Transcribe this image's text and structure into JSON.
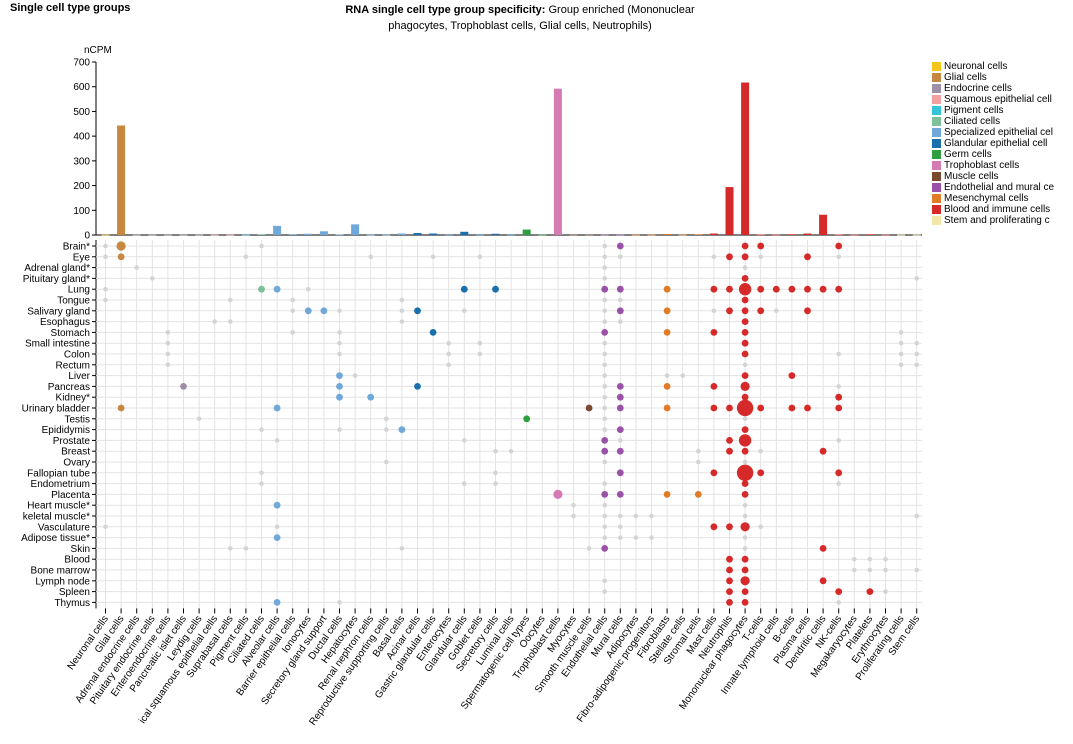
{
  "header": {
    "left_title": "Single cell type groups",
    "title_bold": "RNA single cell type group specificity:",
    "title_rest": " Group enriched (Mononuclear phagocytes, Trophoblast cells, Glial cells, Neutrophils)"
  },
  "legend": [
    {
      "label": "Neuronal cells",
      "color": "#f5c518"
    },
    {
      "label": "Glial cells",
      "color": "#c6873e"
    },
    {
      "label": "Endocrine cells",
      "color": "#9e8fa6"
    },
    {
      "label": "Squamous epithelial cell",
      "color": "#f2a0a0"
    },
    {
      "label": "Pigment cells",
      "color": "#35c4d6"
    },
    {
      "label": "Ciliated cells",
      "color": "#7fbf99"
    },
    {
      "label": "Specialized epithelial cel",
      "color": "#6fa8d9"
    },
    {
      "label": "Glandular epithelial cell",
      "color": "#1a6fad"
    },
    {
      "label": "Germ cells",
      "color": "#2f9e3e"
    },
    {
      "label": "Trophoblast cells",
      "color": "#d67ab4"
    },
    {
      "label": "Muscle cells",
      "color": "#7a4a2e"
    },
    {
      "label": "Endothelial and mural ce",
      "color": "#9a52a8"
    },
    {
      "label": "Mesenchymal cells",
      "color": "#e07b26"
    },
    {
      "label": "Blood and immune cells",
      "color": "#d62a2a"
    },
    {
      "label": "Stem and proliferating c",
      "color": "#f2e6a8"
    }
  ],
  "chart_data": {
    "type": "bar",
    "ylabel": "nCPM",
    "ylim": [
      0,
      700
    ],
    "yticks": [
      0,
      100,
      200,
      300,
      400,
      500,
      600,
      700
    ],
    "grid": true,
    "categories": [
      "Neuronal cells",
      "Glial cells",
      "Adrenal endocrine cells",
      "Pituitary endocrine cells",
      "Enteroendocrine cells",
      "Pancreatic islet cells",
      "Leydig cells",
      "Basal squamous epithelial cells",
      "Suprabasal cells",
      "Pigment cells",
      "Ciliated cells",
      "Alveolar cells",
      "Barrier epithelial cells",
      "Ionocytes",
      "Secretory gland support",
      "Ductal cells",
      "Hepatocytes",
      "Renal nephron cells",
      "Reproductive supporting cells",
      "Basal cells",
      "Acinar cells",
      "Gastric glandular cells",
      "Enterocytes",
      "Glandular cells",
      "Goblet cells",
      "Secretory cells",
      "Luminal cells",
      "Spermatogenic cell types",
      "Oocytes",
      "Trophoblast cells",
      "Myocytes",
      "Smooth muscle cells",
      "Endothelial cells",
      "Mural cells",
      "Adipocytes",
      "Fibro-adipogenic progenitors",
      "Fibroblasts",
      "Stellate cells",
      "Stromal cells",
      "Mast cells",
      "Neutrophils",
      "Mononuclear phagocytes",
      "T-cells",
      "Innate lymphoid cells",
      "B-cells",
      "Plasma cells",
      "Dendritic cells",
      "NK-cells",
      "Megakaryocytes",
      "Platelets",
      "Erythrocytes",
      "Proliferating cells",
      "Stem cells"
    ],
    "categories_display": [
      "Neuronal cells",
      "Glial cells",
      "Adrenal endocrine cells",
      "Pituitary endocrine cells",
      "Enteroendocrine cells",
      "Pancreatic islet cells",
      "Leydig cells",
      "ical squamous epithelial cells",
      "Suprabasal cells",
      "Pigment cells",
      "Ciliated cells",
      "Alveolar cells",
      "Barrier epithelial cells",
      "Ionocytes",
      "Secretory gland support",
      "Ductal cells",
      "Hepatocytes",
      "Renal nephron cells",
      "Reproductive supporting cells",
      "Basal cells",
      "Acinar cells",
      "Gastric glandular cells",
      "Enterocytes",
      "Glandular cells",
      "Goblet cells",
      "Secretory cells",
      "Luminal cells",
      "Spermatogenic cell types",
      "Oocytes",
      "Trophoblast cells",
      "Myocytes",
      "Smooth muscle cells",
      "Endothelial cells",
      "Mural cells",
      "Adipocytes",
      "Fibro-adipogenic progenitors",
      "Fibroblasts",
      "Stellate cells",
      "Stromal cells",
      "Mast cells",
      "Neutrophils",
      "Mononuclear phagocytes",
      "T-cells",
      "Innate lymphoid cells",
      "B-cells",
      "Plasma cells",
      "Dendritic cells",
      "NK-cells",
      "Megakaryocytes",
      "Platelets",
      "Erythrocytes",
      "Proliferating cells",
      "Stem cells"
    ],
    "values": [
      1,
      443,
      1,
      1,
      1,
      1,
      1,
      1,
      1,
      1,
      3,
      37,
      3,
      5,
      15,
      2,
      43,
      1,
      1,
      6,
      8,
      6,
      1,
      13,
      1,
      5,
      1,
      22,
      1,
      592,
      1,
      1,
      1,
      1,
      1,
      1,
      4,
      1,
      3,
      6,
      194,
      617,
      2,
      1,
      3,
      6,
      82,
      2,
      1,
      3,
      1,
      1,
      1
    ],
    "bar_colors": [
      "#f5c518",
      "#c6873e",
      "#9e8fa6",
      "#9e8fa6",
      "#9e8fa6",
      "#9e8fa6",
      "#9e8fa6",
      "#f2a0a0",
      "#f2a0a0",
      "#35c4d6",
      "#7fbf99",
      "#6fa8d9",
      "#6fa8d9",
      "#6fa8d9",
      "#6fa8d9",
      "#6fa8d9",
      "#6fa8d9",
      "#6fa8d9",
      "#6fa8d9",
      "#6fa8d9",
      "#1a6fad",
      "#1a6fad",
      "#1a6fad",
      "#1a6fad",
      "#1a6fad",
      "#1a6fad",
      "#1a6fad",
      "#2f9e3e",
      "#2f9e3e",
      "#d67ab4",
      "#7a4a2e",
      "#7a4a2e",
      "#9a52a8",
      "#9a52a8",
      "#e07b26",
      "#e07b26",
      "#e07b26",
      "#e07b26",
      "#e07b26",
      "#d62a2a",
      "#d62a2a",
      "#d62a2a",
      "#d62a2a",
      "#d62a2a",
      "#d62a2a",
      "#d62a2a",
      "#d62a2a",
      "#d62a2a",
      "#d62a2a",
      "#d62a2a",
      "#d62a2a",
      "#f2e6a8",
      "#f2e6a8"
    ],
    "tissues": [
      "Brain*",
      "Eye",
      "Adrenal gland*",
      "Pituitary gland*",
      "Lung",
      "Tongue",
      "Salivary gland",
      "Esophagus",
      "Stomach",
      "Small intestine",
      "Colon",
      "Rectum",
      "Liver",
      "Pancreas",
      "Kidney*",
      "Urinary bladder",
      "Testis",
      "Epididymis",
      "Prostate",
      "Breast",
      "Ovary",
      "Fallopian tube",
      "Endometrium",
      "Placenta",
      "Heart muscle*",
      "Skeletal muscle*",
      "Vasculature",
      "Adipose tissue*",
      "Skin",
      "Blood",
      "Bone marrow",
      "Lymph node",
      "Spleen",
      "Thymus"
    ],
    "tissues_display": [
      "Brain*",
      "Eye",
      "Adrenal gland*",
      "Pituitary gland*",
      "Lung",
      "Tongue",
      "Salivary gland",
      "Esophagus",
      "Stomach",
      "Small intestine",
      "Colon",
      "Rectum",
      "Liver",
      "Pancreas",
      "Kidney*",
      "Urinary bladder",
      "Testis",
      "Epididymis",
      "Prostate",
      "Breast",
      "Ovary",
      "Fallopian tube",
      "Endometrium",
      "Placenta",
      "Heart muscle*",
      "keletal muscle*",
      "Vasculature",
      "Adipose tissue*",
      "Skin",
      "Blood",
      "Bone marrow",
      "Lymph node",
      "Spleen",
      "Thymus"
    ],
    "dots": [
      [
        0,
        0,
        1
      ],
      [
        0,
        1,
        3
      ],
      [
        0,
        10,
        1
      ],
      [
        0,
        32,
        1
      ],
      [
        0,
        33,
        2
      ],
      [
        0,
        41,
        2
      ],
      [
        0,
        42,
        2
      ],
      [
        0,
        47,
        2
      ],
      [
        1,
        0,
        1
      ],
      [
        1,
        1,
        2
      ],
      [
        1,
        9,
        1
      ],
      [
        1,
        17,
        1
      ],
      [
        1,
        21,
        1
      ],
      [
        1,
        24,
        1
      ],
      [
        1,
        32,
        1
      ],
      [
        1,
        33,
        1
      ],
      [
        1,
        39,
        1
      ],
      [
        1,
        40,
        2
      ],
      [
        1,
        41,
        2
      ],
      [
        1,
        42,
        1
      ],
      [
        1,
        45,
        2
      ],
      [
        1,
        47,
        1
      ],
      [
        2,
        2,
        1
      ],
      [
        2,
        32,
        1
      ],
      [
        2,
        41,
        1
      ],
      [
        3,
        3,
        1
      ],
      [
        3,
        32,
        1
      ],
      [
        3,
        41,
        2
      ],
      [
        3,
        52,
        1
      ],
      [
        4,
        0,
        1
      ],
      [
        4,
        10,
        2
      ],
      [
        4,
        11,
        2
      ],
      [
        4,
        13,
        1
      ],
      [
        4,
        23,
        2
      ],
      [
        4,
        25,
        2
      ],
      [
        4,
        32,
        2
      ],
      [
        4,
        33,
        2
      ],
      [
        4,
        36,
        2
      ],
      [
        4,
        39,
        2
      ],
      [
        4,
        40,
        2
      ],
      [
        4,
        41,
        4
      ],
      [
        4,
        42,
        2
      ],
      [
        4,
        43,
        2
      ],
      [
        4,
        44,
        2
      ],
      [
        4,
        45,
        2
      ],
      [
        4,
        46,
        2
      ],
      [
        4,
        47,
        2
      ],
      [
        5,
        0,
        1
      ],
      [
        5,
        8,
        1
      ],
      [
        5,
        12,
        1
      ],
      [
        5,
        19,
        1
      ],
      [
        5,
        32,
        1
      ],
      [
        5,
        33,
        1
      ],
      [
        5,
        41,
        2
      ],
      [
        6,
        12,
        1
      ],
      [
        6,
        13,
        2
      ],
      [
        6,
        14,
        2
      ],
      [
        6,
        15,
        1
      ],
      [
        6,
        19,
        1
      ],
      [
        6,
        20,
        2
      ],
      [
        6,
        23,
        1
      ],
      [
        6,
        32,
        1
      ],
      [
        6,
        33,
        2
      ],
      [
        6,
        36,
        2
      ],
      [
        6,
        39,
        1
      ],
      [
        6,
        40,
        2
      ],
      [
        6,
        41,
        2
      ],
      [
        6,
        42,
        2
      ],
      [
        6,
        43,
        1
      ],
      [
        6,
        45,
        2
      ],
      [
        7,
        7,
        1
      ],
      [
        7,
        8,
        1
      ],
      [
        7,
        19,
        1
      ],
      [
        7,
        32,
        1
      ],
      [
        7,
        33,
        1
      ],
      [
        7,
        41,
        2
      ],
      [
        8,
        4,
        1
      ],
      [
        8,
        12,
        1
      ],
      [
        8,
        15,
        1
      ],
      [
        8,
        21,
        2
      ],
      [
        8,
        32,
        2
      ],
      [
        8,
        36,
        2
      ],
      [
        8,
        39,
        2
      ],
      [
        8,
        41,
        2
      ],
      [
        8,
        51,
        1
      ],
      [
        9,
        4,
        1
      ],
      [
        9,
        15,
        1
      ],
      [
        9,
        22,
        1
      ],
      [
        9,
        24,
        1
      ],
      [
        9,
        32,
        1
      ],
      [
        9,
        41,
        2
      ],
      [
        9,
        51,
        1
      ],
      [
        9,
        52,
        1
      ],
      [
        10,
        4,
        1
      ],
      [
        10,
        15,
        1
      ],
      [
        10,
        22,
        1
      ],
      [
        10,
        24,
        1
      ],
      [
        10,
        32,
        1
      ],
      [
        10,
        41,
        2
      ],
      [
        10,
        47,
        1
      ],
      [
        10,
        51,
        1
      ],
      [
        10,
        52,
        1
      ],
      [
        11,
        4,
        1
      ],
      [
        11,
        22,
        1
      ],
      [
        11,
        32,
        1
      ],
      [
        11,
        41,
        1
      ],
      [
        11,
        51,
        1
      ],
      [
        11,
        52,
        1
      ],
      [
        12,
        15,
        2
      ],
      [
        12,
        16,
        1
      ],
      [
        12,
        32,
        1
      ],
      [
        12,
        36,
        1
      ],
      [
        12,
        37,
        1
      ],
      [
        12,
        41,
        2
      ],
      [
        12,
        44,
        2
      ],
      [
        13,
        5,
        2
      ],
      [
        13,
        15,
        2
      ],
      [
        13,
        20,
        2
      ],
      [
        13,
        32,
        1
      ],
      [
        13,
        33,
        2
      ],
      [
        13,
        36,
        2
      ],
      [
        13,
        39,
        2
      ],
      [
        13,
        41,
        3
      ],
      [
        13,
        47,
        1
      ],
      [
        14,
        15,
        2
      ],
      [
        14,
        17,
        2
      ],
      [
        14,
        32,
        1
      ],
      [
        14,
        33,
        2
      ],
      [
        14,
        41,
        2
      ],
      [
        14,
        47,
        2
      ],
      [
        15,
        1,
        2
      ],
      [
        15,
        11,
        2
      ],
      [
        15,
        31,
        2
      ],
      [
        15,
        32,
        1
      ],
      [
        15,
        33,
        2
      ],
      [
        15,
        36,
        2
      ],
      [
        15,
        39,
        2
      ],
      [
        15,
        40,
        2
      ],
      [
        15,
        41,
        5
      ],
      [
        15,
        42,
        2
      ],
      [
        15,
        44,
        2
      ],
      [
        15,
        45,
        2
      ],
      [
        15,
        47,
        2
      ],
      [
        16,
        6,
        1
      ],
      [
        16,
        18,
        1
      ],
      [
        16,
        27,
        2
      ],
      [
        16,
        32,
        1
      ],
      [
        16,
        41,
        1
      ],
      [
        17,
        10,
        1
      ],
      [
        17,
        15,
        1
      ],
      [
        17,
        18,
        1
      ],
      [
        17,
        19,
        2
      ],
      [
        17,
        32,
        1
      ],
      [
        17,
        33,
        2
      ],
      [
        17,
        41,
        2
      ],
      [
        18,
        11,
        1
      ],
      [
        18,
        23,
        1
      ],
      [
        18,
        32,
        2
      ],
      [
        18,
        33,
        1
      ],
      [
        18,
        40,
        2
      ],
      [
        18,
        41,
        4
      ],
      [
        18,
        47,
        1
      ],
      [
        19,
        25,
        1
      ],
      [
        19,
        26,
        1
      ],
      [
        19,
        32,
        2
      ],
      [
        19,
        33,
        2
      ],
      [
        19,
        38,
        1
      ],
      [
        19,
        40,
        2
      ],
      [
        19,
        41,
        2
      ],
      [
        19,
        42,
        1
      ],
      [
        19,
        46,
        2
      ],
      [
        20,
        18,
        1
      ],
      [
        20,
        32,
        1
      ],
      [
        20,
        38,
        1
      ],
      [
        20,
        41,
        1
      ],
      [
        21,
        10,
        1
      ],
      [
        21,
        25,
        1
      ],
      [
        21,
        33,
        2
      ],
      [
        21,
        39,
        2
      ],
      [
        21,
        41,
        5
      ],
      [
        21,
        42,
        2
      ],
      [
        21,
        47,
        2
      ],
      [
        22,
        10,
        1
      ],
      [
        22,
        23,
        1
      ],
      [
        22,
        25,
        1
      ],
      [
        22,
        32,
        1
      ],
      [
        22,
        41,
        2
      ],
      [
        22,
        47,
        1
      ],
      [
        23,
        29,
        3
      ],
      [
        23,
        32,
        2
      ],
      [
        23,
        33,
        2
      ],
      [
        23,
        36,
        2
      ],
      [
        23,
        38,
        2
      ],
      [
        23,
        41,
        2
      ],
      [
        24,
        11,
        2
      ],
      [
        24,
        30,
        1
      ],
      [
        24,
        32,
        1
      ],
      [
        24,
        41,
        1
      ],
      [
        25,
        30,
        1
      ],
      [
        25,
        32,
        1
      ],
      [
        25,
        33,
        1
      ],
      [
        25,
        34,
        1
      ],
      [
        25,
        35,
        1
      ],
      [
        25,
        41,
        1
      ],
      [
        25,
        52,
        1
      ],
      [
        26,
        0,
        1
      ],
      [
        26,
        11,
        1
      ],
      [
        26,
        32,
        1
      ],
      [
        26,
        33,
        1
      ],
      [
        26,
        39,
        2
      ],
      [
        26,
        40,
        2
      ],
      [
        26,
        41,
        3
      ],
      [
        26,
        42,
        1
      ],
      [
        27,
        11,
        2
      ],
      [
        27,
        32,
        1
      ],
      [
        27,
        33,
        1
      ],
      [
        27,
        34,
        1
      ],
      [
        27,
        35,
        1
      ],
      [
        27,
        41,
        1
      ],
      [
        28,
        8,
        1
      ],
      [
        28,
        9,
        1
      ],
      [
        28,
        19,
        1
      ],
      [
        28,
        31,
        1
      ],
      [
        28,
        32,
        2
      ],
      [
        28,
        41,
        1
      ],
      [
        28,
        46,
        2
      ],
      [
        29,
        40,
        2
      ],
      [
        29,
        41,
        2
      ],
      [
        29,
        48,
        1
      ],
      [
        29,
        49,
        1
      ],
      [
        29,
        50,
        1
      ],
      [
        30,
        40,
        2
      ],
      [
        30,
        41,
        2
      ],
      [
        30,
        48,
        1
      ],
      [
        30,
        49,
        1
      ],
      [
        30,
        50,
        1
      ],
      [
        30,
        52,
        1
      ],
      [
        31,
        32,
        1
      ],
      [
        31,
        40,
        2
      ],
      [
        31,
        41,
        3
      ],
      [
        31,
        46,
        2
      ],
      [
        32,
        32,
        1
      ],
      [
        32,
        40,
        2
      ],
      [
        32,
        41,
        2
      ],
      [
        32,
        47,
        2
      ],
      [
        32,
        49,
        2
      ],
      [
        32,
        50,
        1
      ],
      [
        33,
        11,
        2
      ],
      [
        33,
        15,
        1
      ],
      [
        33,
        40,
        2
      ],
      [
        33,
        41,
        2
      ],
      [
        33,
        47,
        1
      ]
    ]
  }
}
